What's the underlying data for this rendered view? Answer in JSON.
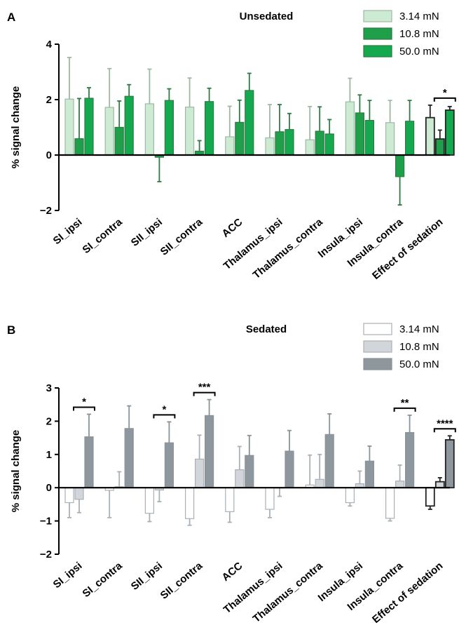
{
  "chart_data": [
    {
      "panel_label": "A",
      "type": "bar",
      "title": "Unsedated",
      "ylabel": "% signal change",
      "xlabel": "",
      "ylim": [
        -2,
        4
      ],
      "yticks": [
        -2,
        0,
        2,
        4
      ],
      "grid": false,
      "legend_position": "top-right",
      "categories": [
        "SI_ipsi",
        "SI_contra",
        "SII_ipsi",
        "SII_contra",
        "ACC",
        "Thalamus_ipsi",
        "Thalamus_contra",
        "Insula_ipsi",
        "Insula_contra",
        "Effect of sedation"
      ],
      "series": [
        {
          "name": "3.14 mN",
          "color": "#cdebd3",
          "stroke": "#9fb8a6",
          "values": [
            2.02,
            1.72,
            1.85,
            1.73,
            0.66,
            0.62,
            0.55,
            1.92,
            1.17,
            1.35
          ],
          "errors": [
            1.5,
            1.4,
            1.25,
            1.05,
            1.1,
            1.2,
            1.2,
            0.85,
            0.8,
            0.45
          ]
        },
        {
          "name": "10.8 mN",
          "color": "#1f9f4a",
          "stroke": "#2f7a44",
          "values": [
            0.59,
            1.0,
            -0.08,
            0.14,
            1.18,
            0.84,
            0.86,
            1.52,
            -0.78,
            0.58
          ],
          "errors": [
            1.45,
            0.95,
            0.88,
            0.38,
            0.8,
            0.98,
            0.88,
            0.65,
            1.02,
            0.32
          ]
        },
        {
          "name": "50.0 mN",
          "color": "#14a84f",
          "stroke": "#2f7a44",
          "values": [
            2.05,
            2.12,
            1.97,
            1.93,
            2.33,
            0.92,
            0.76,
            1.25,
            1.22,
            1.62
          ],
          "errors": [
            0.38,
            0.42,
            0.42,
            0.48,
            0.62,
            0.58,
            0.52,
            0.72,
            0.75,
            0.13
          ]
        }
      ],
      "significance": [
        {
          "category": "Effect of sedation",
          "from_series": 1,
          "to_series": 2,
          "label": "*"
        }
      ]
    },
    {
      "panel_label": "B",
      "type": "bar",
      "title": "Sedated",
      "ylabel": "% signal change",
      "xlabel": "",
      "ylim": [
        -2,
        3
      ],
      "yticks": [
        -2,
        -1,
        0,
        1,
        2,
        3
      ],
      "grid": false,
      "legend_position": "top-right",
      "categories": [
        "SI_ipsi",
        "SI_contra",
        "SII_ipsi",
        "SII_contra",
        "ACC",
        "Thalamus_ipsi",
        "Thalamus_contra",
        "Insula_ipsi",
        "Insula_contra",
        "Effect of sedation"
      ],
      "series": [
        {
          "name": "3.14 mN",
          "color": "#ffffff",
          "stroke": "#a9b1b6",
          "values": [
            -0.45,
            -0.08,
            -0.77,
            -0.93,
            -0.72,
            -0.65,
            0.08,
            -0.45,
            -0.92,
            -0.55
          ],
          "errors": [
            0.45,
            0.82,
            0.25,
            0.2,
            0.32,
            0.25,
            0.9,
            0.1,
            0.08,
            0.1
          ]
        },
        {
          "name": "10.8 mN",
          "color": "#d2d6db",
          "stroke": "#a9b1b6",
          "values": [
            -0.35,
            0.03,
            -0.07,
            0.86,
            0.54,
            -0.01,
            0.25,
            0.12,
            0.2,
            0.18
          ],
          "errors": [
            0.4,
            0.45,
            0.35,
            0.72,
            0.7,
            0.25,
            0.75,
            0.38,
            0.48,
            0.12
          ]
        },
        {
          "name": "50.0 mN",
          "color": "#8e979d",
          "stroke": "#8a9398",
          "values": [
            1.53,
            1.78,
            1.35,
            2.17,
            0.97,
            1.1,
            1.6,
            0.8,
            1.66,
            1.44
          ],
          "errors": [
            0.68,
            0.68,
            0.63,
            0.48,
            0.6,
            0.62,
            0.62,
            0.45,
            0.52,
            0.12
          ]
        }
      ],
      "significance": [
        {
          "category": "SI_ipsi",
          "from_series": 1,
          "to_series": 2,
          "label": "*"
        },
        {
          "category": "SII_ipsi",
          "from_series": 1,
          "to_series": 2,
          "label": "*"
        },
        {
          "category": "SII_contra",
          "from_series": 1,
          "to_series": 2,
          "label": "***"
        },
        {
          "category": "Insula_contra",
          "from_series": 1,
          "to_series": 2,
          "label": "**"
        },
        {
          "category": "Effect of sedation",
          "from_series": 1,
          "to_series": 2,
          "label": "****"
        }
      ]
    }
  ]
}
